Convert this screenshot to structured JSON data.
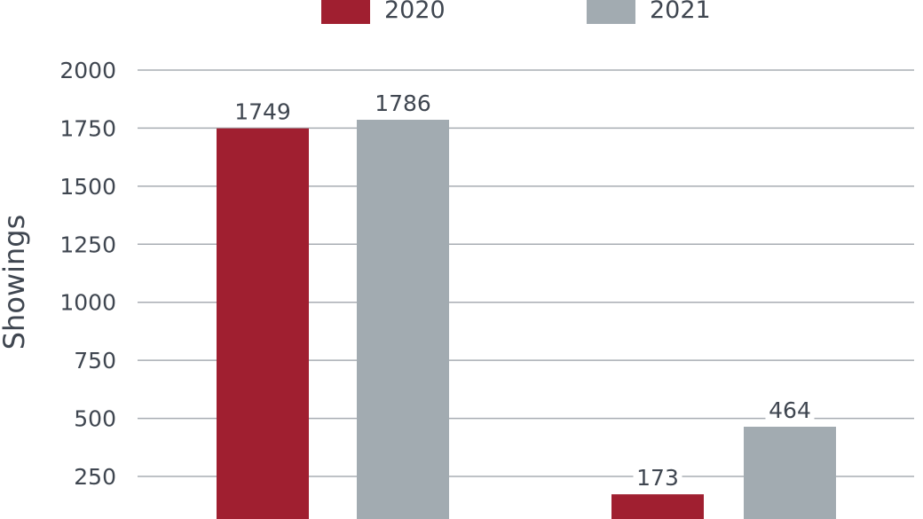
{
  "chart_data": {
    "type": "bar",
    "ylabel": "Showings",
    "xlabel": "",
    "categories": [
      "",
      ""
    ],
    "ylim": [
      0,
      2000
    ],
    "yticks": [
      250,
      500,
      750,
      1000,
      1250,
      1500,
      1750,
      2000
    ],
    "grid": true,
    "legend_placement": "top",
    "series": [
      {
        "name": "2020",
        "color": "#a01f30",
        "values": [
          1749,
          173
        ],
        "labels": [
          "1749",
          "173"
        ]
      },
      {
        "name": "2021",
        "color": "#a2abb1",
        "values": [
          1786,
          464
        ],
        "labels": [
          "1786",
          "464"
        ]
      }
    ]
  }
}
